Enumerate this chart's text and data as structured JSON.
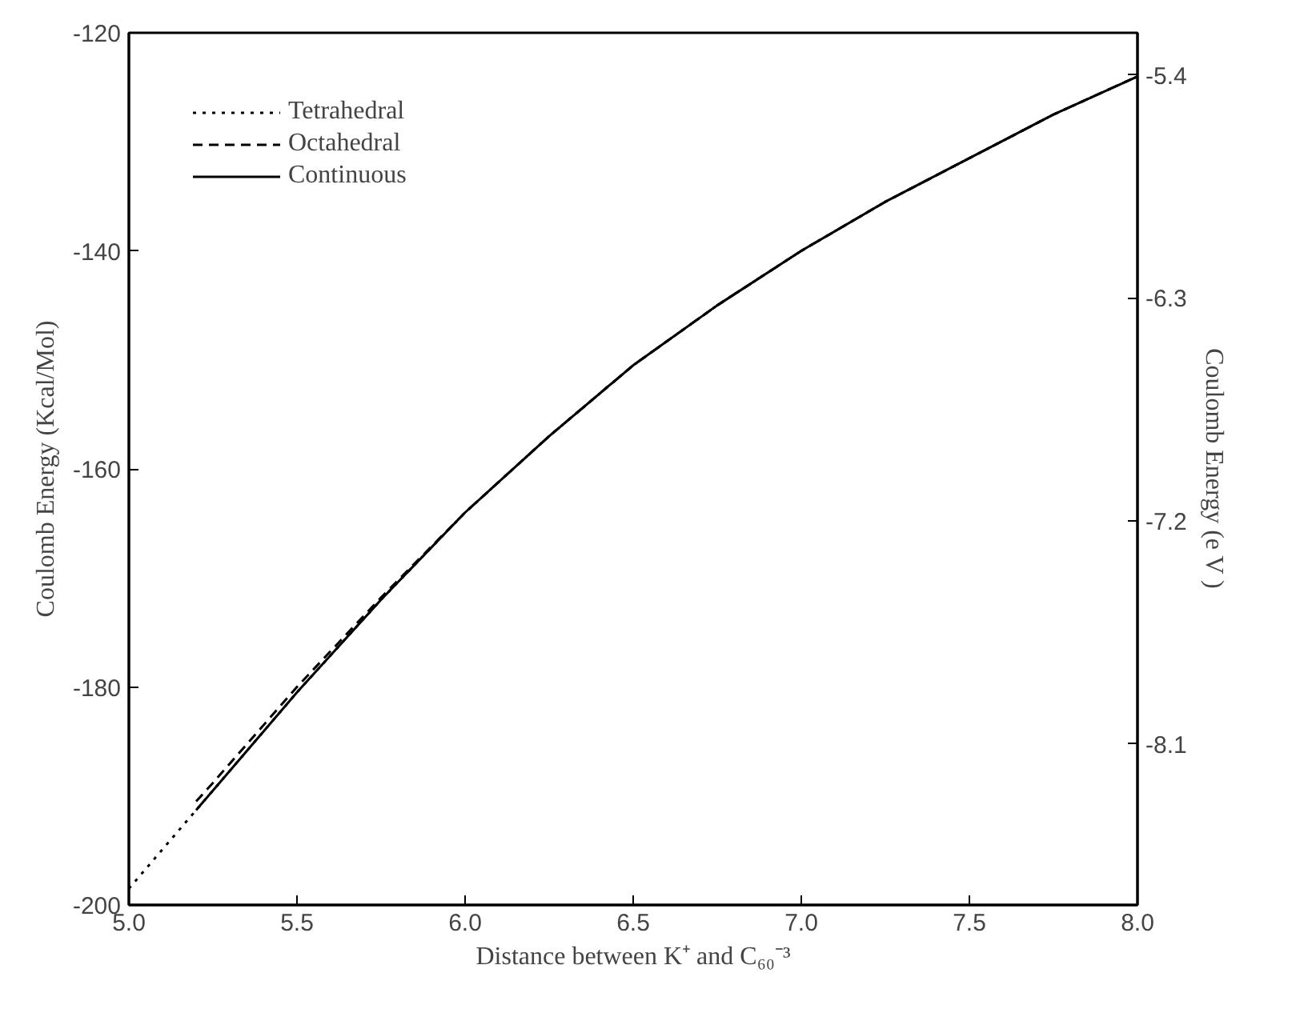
{
  "chart_data": {
    "type": "line",
    "xlabel": "Distance between K⁺ and C₆₀⁻³",
    "ylabel": "Coulomb Energy (Kcal/Mol)",
    "y2label": "Coulomb Energy (e V )",
    "xlim": [
      5.0,
      8.0
    ],
    "xticks": [
      {
        "value": 5,
        "label": "5.0"
      },
      5.5,
      {
        "value": 6,
        "label": "6.0"
      },
      6.5,
      {
        "value": 7,
        "label": "7.0"
      },
      7.5,
      {
        "value": 8,
        "label": "8.0"
      }
    ],
    "ylim": [
      -200,
      -120
    ],
    "yticks": [
      -200,
      -180,
      -160,
      -140,
      -120
    ],
    "y2lim": [
      -8.75,
      -5.23
    ],
    "y2ticks": [
      -8.1,
      -7.2,
      -6.3,
      -5.4
    ],
    "grid": false,
    "legend": "top left",
    "series": [
      {
        "name": "Tetrahedral",
        "color": "#000000",
        "line_style": "dotted",
        "x": [
          5.0,
          5.25,
          5.5,
          5.75,
          6.0,
          6.25,
          6.5,
          6.75,
          7.0,
          7.25,
          7.5,
          7.75,
          8.0
        ],
        "values": [
          -198.5,
          -189.5,
          -180.5,
          -172,
          -164,
          -157,
          -150.5,
          -145,
          -140,
          -135.5,
          -131.5,
          -127.5,
          -124
        ]
      },
      {
        "name": "Octahedral",
        "color": "#000000",
        "line_style": "dashed",
        "x": [
          5.2,
          5.25,
          5.5,
          5.75,
          6.0,
          6.25,
          6.5,
          6.75,
          7.0,
          7.25,
          7.5,
          7.75,
          8.0
        ],
        "values": [
          -190.5,
          -188.8,
          -180,
          -171.8,
          -164,
          -157,
          -150.5,
          -145,
          -140,
          -135.5,
          -131.5,
          -127.5,
          -124
        ]
      },
      {
        "name": "Continuous",
        "color": "#000000",
        "line_style": "solid",
        "x": [
          5.2,
          5.25,
          5.5,
          5.75,
          6.0,
          6.25,
          6.5,
          6.75,
          7.0,
          7.25,
          7.5,
          7.75,
          8.0
        ],
        "values": [
          -191.3,
          -189.5,
          -180.5,
          -172,
          -164,
          -157,
          -150.5,
          -145,
          -140,
          -135.5,
          -131.5,
          -127.5,
          -124
        ]
      }
    ]
  }
}
